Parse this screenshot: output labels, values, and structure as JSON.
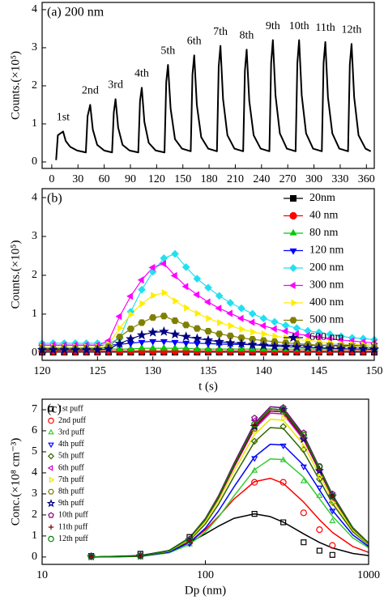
{
  "chart_data": [
    {
      "type": "line",
      "label": "(a) 200 nm",
      "ylabel": "Counts.(×10⁵)",
      "xlim": [
        -11,
        369
      ],
      "xticks": [
        0,
        30,
        60,
        90,
        120,
        150,
        180,
        210,
        240,
        270,
        300,
        330,
        360
      ],
      "ylim": [
        -0.17,
        4.19
      ],
      "yticks": [
        0,
        1,
        2,
        3,
        4
      ],
      "color": "#000000",
      "markers": false,
      "x": [
        5,
        7,
        10,
        13,
        16,
        21,
        29,
        39,
        41,
        44,
        47,
        52,
        60,
        69,
        71,
        73,
        76,
        81,
        89,
        99,
        101,
        103,
        106,
        111,
        119,
        129,
        131,
        133,
        136,
        141,
        149,
        159,
        161,
        163,
        166,
        171,
        179,
        189,
        191,
        193,
        196,
        201,
        209,
        219,
        221,
        223,
        226,
        231,
        239,
        249,
        251,
        253,
        256,
        261,
        269,
        279,
        281,
        283,
        286,
        291,
        299,
        309,
        311,
        313,
        316,
        321,
        329,
        339,
        341,
        343,
        346,
        351,
        359,
        365
      ],
      "values": [
        0.05,
        0.7,
        0.75,
        0.8,
        0.55,
        0.4,
        0.3,
        0.25,
        1.2,
        1.5,
        0.85,
        0.45,
        0.3,
        0.25,
        1.3,
        1.65,
        0.9,
        0.45,
        0.3,
        0.25,
        1.6,
        1.95,
        1.05,
        0.5,
        0.3,
        0.25,
        2.1,
        2.55,
        1.4,
        0.6,
        0.35,
        0.28,
        2.3,
        2.8,
        1.5,
        0.65,
        0.35,
        0.28,
        2.5,
        3.05,
        1.65,
        0.7,
        0.35,
        0.28,
        2.4,
        2.95,
        1.6,
        0.7,
        0.35,
        0.28,
        2.6,
        3.2,
        1.75,
        0.75,
        0.35,
        0.28,
        2.6,
        3.2,
        1.75,
        0.75,
        0.35,
        0.28,
        2.6,
        3.15,
        1.7,
        0.75,
        0.35,
        0.28,
        2.55,
        3.1,
        1.7,
        0.7,
        0.35,
        0.28
      ],
      "annotations": [
        "1st",
        "2nd",
        "3rd",
        "4th",
        "5th",
        "6th",
        "7th",
        "8th",
        "9th",
        "10th",
        "11th",
        "12th"
      ]
    },
    {
      "type": "line",
      "label": "(b)",
      "ylabel": "Counts.(×10⁵)",
      "xlabel": "t (s)",
      "xlim": [
        120,
        150
      ],
      "xticks": [
        120,
        125,
        130,
        135,
        140,
        145,
        150
      ],
      "ylim": [
        -0.19,
        4.23
      ],
      "yticks": [
        0,
        1,
        2,
        3,
        4
      ],
      "markers": true,
      "marker_fill": true,
      "legend": "upper right",
      "x": [
        120,
        121,
        122,
        123,
        124,
        125,
        126,
        127,
        128,
        129,
        130,
        131,
        132,
        133,
        134,
        135,
        136,
        137,
        138,
        139,
        140,
        141,
        142,
        143,
        144,
        145,
        146,
        147,
        148,
        149,
        150
      ],
      "series": [
        {
          "name": "20nm",
          "color": "#000000",
          "marker": "square",
          "values": [
            0.02,
            0.02,
            0.02,
            0.02,
            0.02,
            0.02,
            0.02,
            0.02,
            0.02,
            0.02,
            0.02,
            0.02,
            0.02,
            0.02,
            0.02,
            0.02,
            0.02,
            0.02,
            0.02,
            0.02,
            0.02,
            0.02,
            0.02,
            0.02,
            0.02,
            0.02,
            0.02,
            0.02,
            0.02,
            0.02,
            0.02
          ]
        },
        {
          "name": "40 nm",
          "color": "#ff0000",
          "marker": "circle",
          "values": [
            0.05,
            0.05,
            0.05,
            0.05,
            0.05,
            0.05,
            0.05,
            0.05,
            0.05,
            0.05,
            0.05,
            0.05,
            0.05,
            0.05,
            0.05,
            0.05,
            0.05,
            0.05,
            0.05,
            0.05,
            0.05,
            0.05,
            0.05,
            0.05,
            0.05,
            0.05,
            0.05,
            0.05,
            0.05,
            0.05,
            0.05
          ]
        },
        {
          "name": "80 nm",
          "color": "#00cc00",
          "marker": "triangle-up",
          "values": [
            0.1,
            0.1,
            0.1,
            0.1,
            0.1,
            0.1,
            0.1,
            0.1,
            0.1,
            0.12,
            0.12,
            0.12,
            0.12,
            0.12,
            0.1,
            0.1,
            0.1,
            0.1,
            0.1,
            0.1,
            0.1,
            0.1,
            0.1,
            0.1,
            0.1,
            0.1,
            0.1,
            0.1,
            0.1,
            0.1,
            0.1
          ]
        },
        {
          "name": "120 nm",
          "color": "#0000ff",
          "marker": "triangle-down",
          "values": [
            0.2,
            0.2,
            0.2,
            0.2,
            0.2,
            0.2,
            0.2,
            0.22,
            0.25,
            0.28,
            0.3,
            0.3,
            0.28,
            0.26,
            0.25,
            0.24,
            0.23,
            0.22,
            0.22,
            0.21,
            0.21,
            0.2,
            0.2,
            0.2,
            0.2,
            0.2,
            0.2,
            0.2,
            0.2,
            0.2,
            0.2
          ]
        },
        {
          "name": "200 nm",
          "color": "#22e0f0",
          "marker": "diamond",
          "values": [
            0.25,
            0.25,
            0.25,
            0.25,
            0.25,
            0.25,
            0.25,
            0.37,
            1.06,
            1.63,
            2.09,
            2.44,
            2.55,
            2.21,
            1.91,
            1.68,
            1.47,
            1.29,
            1.15,
            1.01,
            0.89,
            0.8,
            0.71,
            0.64,
            0.57,
            0.53,
            0.48,
            0.43,
            0.39,
            0.37,
            0.34
          ]
        },
        {
          "name": "300 nm",
          "color": "#ff00ff",
          "marker": "triangle-left",
          "values": [
            0.2,
            0.2,
            0.2,
            0.2,
            0.2,
            0.2,
            0.31,
            0.94,
            1.46,
            1.88,
            2.2,
            2.3,
            1.99,
            1.71,
            1.5,
            1.31,
            1.15,
            1.02,
            0.89,
            0.79,
            0.7,
            0.62,
            0.56,
            0.49,
            0.45,
            0.41,
            0.37,
            0.33,
            0.31,
            0.28,
            0.26
          ]
        },
        {
          "name": "400 nm",
          "color": "#ffee00",
          "marker": "triangle-right",
          "values": [
            0.15,
            0.15,
            0.15,
            0.15,
            0.15,
            0.15,
            0.22,
            0.64,
            0.99,
            1.27,
            1.48,
            1.55,
            1.34,
            1.16,
            1.02,
            0.89,
            0.78,
            0.7,
            0.61,
            0.54,
            0.49,
            0.43,
            0.39,
            0.35,
            0.32,
            0.29,
            0.26,
            0.23,
            0.22,
            0.21,
            0.19
          ]
        },
        {
          "name": "500 nm",
          "color": "#808000",
          "marker": "hexagon",
          "values": [
            0.12,
            0.12,
            0.12,
            0.12,
            0.12,
            0.12,
            0.16,
            0.41,
            0.62,
            0.78,
            0.91,
            0.95,
            0.83,
            0.72,
            0.63,
            0.56,
            0.49,
            0.44,
            0.39,
            0.35,
            0.32,
            0.29,
            0.26,
            0.24,
            0.22,
            0.2,
            0.19,
            0.17,
            0.16,
            0.15,
            0.14
          ]
        },
        {
          "name": "600 nm",
          "color": "#000080",
          "marker": "star",
          "values": [
            0.08,
            0.08,
            0.08,
            0.08,
            0.08,
            0.08,
            0.1,
            0.24,
            0.36,
            0.46,
            0.53,
            0.55,
            0.48,
            0.42,
            0.37,
            0.33,
            0.29,
            0.26,
            0.24,
            0.21,
            0.19,
            0.17,
            0.16,
            0.15,
            0.14,
            0.13,
            0.12,
            0.11,
            0.1,
            0.1,
            0.09
          ]
        }
      ]
    },
    {
      "type": "line",
      "label": "(c)",
      "ylabel": "Conc.(×10⁸ cm⁻³)",
      "xlabel": "Dp (nm)",
      "xscale": "log",
      "xlim": [
        10,
        1000
      ],
      "xticks": [
        10,
        100,
        1000
      ],
      "ylim": [
        -0.35,
        7.5
      ],
      "yticks": [
        0,
        1,
        2,
        3,
        4,
        5,
        6,
        7
      ],
      "markers": true,
      "marker_fill": false,
      "legend": "upper left",
      "x": [
        20,
        40,
        80,
        200,
        300,
        400,
        500,
        600
      ],
      "fit_x": [
        20,
        40,
        60,
        80,
        100,
        120,
        150,
        200,
        250,
        300,
        400,
        500,
        600,
        800,
        1000
      ],
      "series": [
        {
          "name": "1st puff",
          "color": "#000000",
          "marker": "square",
          "values": [
            0.05,
            0.15,
            0.95,
            2.05,
            1.65,
            0.7,
            0.3,
            0.1
          ],
          "fit_values": [
            0,
            0.07,
            0.31,
            0.69,
            1.1,
            1.46,
            1.84,
            2.05,
            1.92,
            1.66,
            1.1,
            0.69,
            0.43,
            0.17,
            0.07
          ]
        },
        {
          "name": "2nd puff",
          "color": "#ff0000",
          "marker": "circle",
          "values": [
            0.02,
            0.05,
            0.7,
            3.55,
            3.55,
            2.1,
            1.3,
            0.55
          ],
          "fit_values": [
            0,
            0.04,
            0.26,
            0.7,
            1.29,
            1.92,
            2.76,
            3.58,
            3.74,
            3.5,
            2.61,
            1.77,
            1.17,
            0.5,
            0.22
          ]
        },
        {
          "name": "3rd puff",
          "color": "#33cc33",
          "marker": "triangle-up",
          "values": [
            0.02,
            0.05,
            0.6,
            4.1,
            4.6,
            3.6,
            2.9,
            1.7
          ],
          "fit_values": [
            0,
            0.03,
            0.2,
            0.6,
            1.19,
            1.88,
            2.91,
            4.15,
            4.66,
            4.63,
            3.79,
            2.77,
            1.94,
            0.91,
            0.44
          ]
        },
        {
          "name": "4th puff",
          "color": "#0000ff",
          "marker": "triangle-down",
          "values": [
            0.02,
            0.05,
            0.65,
            4.7,
            5.3,
            4.3,
            3.3,
            2.2
          ],
          "fit_values": [
            0,
            0.03,
            0.23,
            0.69,
            1.37,
            2.17,
            3.34,
            4.76,
            5.36,
            5.32,
            4.36,
            3.19,
            2.22,
            1.05,
            0.5
          ]
        },
        {
          "name": "5th puff",
          "color": "#336600",
          "marker": "diamond",
          "values": [
            0.02,
            0.05,
            0.75,
            5.5,
            6.2,
            5.1,
            3.7,
            2.6
          ],
          "fit_values": [
            0,
            0.04,
            0.27,
            0.79,
            1.57,
            2.49,
            3.84,
            5.47,
            6.15,
            6.11,
            5.0,
            3.66,
            2.55,
            1.2,
            0.58
          ]
        },
        {
          "name": "6th puff",
          "color": "#cc00cc",
          "marker": "triangle-left",
          "values": [
            0.02,
            0.05,
            0.8,
            6.5,
            7.0,
            5.6,
            4.1,
            2.8
          ],
          "fit_values": [
            0,
            0.04,
            0.3,
            0.88,
            1.75,
            2.77,
            4.27,
            6.09,
            6.84,
            6.8,
            5.57,
            4.07,
            2.84,
            1.34,
            0.64
          ]
        },
        {
          "name": "7th puff",
          "color": "#e6e600",
          "marker": "triangle-right",
          "values": [
            0.02,
            0.05,
            0.75,
            6.0,
            6.6,
            5.2,
            3.8,
            2.6
          ],
          "fit_values": [
            0,
            0.04,
            0.28,
            0.84,
            1.68,
            2.65,
            4.09,
            5.82,
            6.55,
            6.5,
            5.33,
            3.89,
            2.72,
            1.28,
            0.61
          ]
        },
        {
          "name": "8th puff",
          "color": "#808000",
          "marker": "hexagon",
          "values": [
            0.02,
            0.05,
            0.8,
            6.1,
            6.9,
            5.8,
            4.3,
            2.9
          ],
          "fit_values": [
            0,
            0.04,
            0.3,
            0.9,
            1.78,
            2.81,
            4.33,
            6.17,
            6.94,
            6.9,
            5.65,
            4.13,
            2.88,
            1.36,
            0.65
          ]
        },
        {
          "name": "9th puff",
          "color": "#000080",
          "marker": "star",
          "values": [
            0.02,
            0.05,
            0.8,
            6.2,
            7.0,
            5.6,
            4.1,
            2.9
          ],
          "fit_values": [
            0,
            0.04,
            0.31,
            0.91,
            1.8,
            2.85,
            4.39,
            6.26,
            7.04,
            6.99,
            5.73,
            4.19,
            2.93,
            1.38,
            0.66
          ]
        },
        {
          "name": "10th puff",
          "color": "#800080",
          "marker": "pentagon",
          "values": [
            0.02,
            0.05,
            0.85,
            6.6,
            7.1,
            5.9,
            4.3,
            3.0
          ],
          "fit_values": [
            0,
            0.04,
            0.31,
            0.92,
            1.83,
            2.89,
            4.46,
            6.35,
            7.14,
            7.09,
            5.81,
            4.25,
            2.97,
            1.4,
            0.67
          ]
        },
        {
          "name": "11th puff",
          "color": "#800000",
          "marker": "plus",
          "values": [
            0.02,
            0.05,
            0.8,
            6.3,
            7.0,
            5.7,
            4.2,
            2.9
          ],
          "fit_values": [
            0,
            0.04,
            0.3,
            0.9,
            1.78,
            2.81,
            4.33,
            6.17,
            6.94,
            6.9,
            5.65,
            4.13,
            2.88,
            1.36,
            0.65
          ]
        },
        {
          "name": "12th puff",
          "color": "#008000",
          "marker": "circle",
          "values": [
            0.02,
            0.05,
            0.8,
            6.3,
            7.0,
            5.8,
            4.3,
            2.9
          ],
          "fit_values": [
            0,
            0.04,
            0.31,
            0.91,
            1.8,
            2.85,
            4.39,
            6.26,
            7.04,
            6.99,
            5.73,
            4.19,
            2.93,
            1.38,
            0.66
          ]
        }
      ]
    }
  ]
}
